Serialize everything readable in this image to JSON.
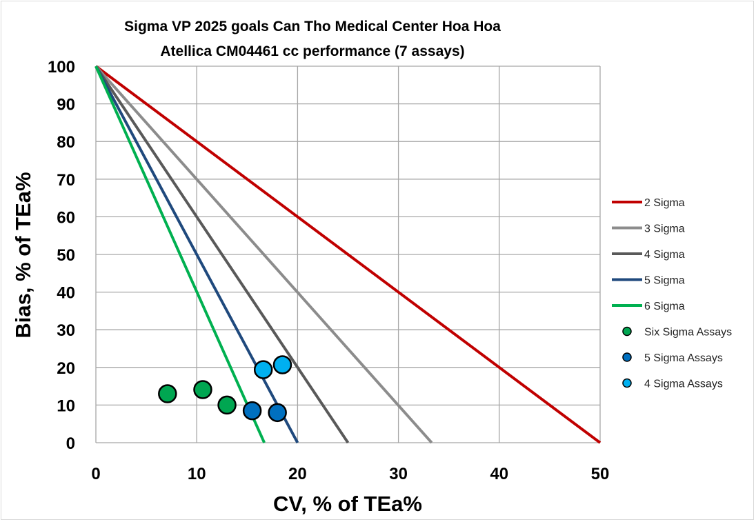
{
  "chart_data": {
    "type": "scatter",
    "title": [
      "Sigma VP 2025 goals Can Tho Medical Center Hoa Hoa",
      "Atellica CM04461 cc performance (7 assays)"
    ],
    "xlabel": "CV, % of TEa%",
    "ylabel": "Bias, % of TEa%",
    "xlim": [
      0,
      50
    ],
    "ylim": [
      0,
      100
    ],
    "xticks": [
      0,
      10,
      20,
      30,
      40,
      50
    ],
    "yticks": [
      0,
      10,
      20,
      30,
      40,
      50,
      60,
      70,
      80,
      90,
      100
    ],
    "grid": true,
    "legend_position": "right",
    "lines": [
      {
        "name": "2 Sigma",
        "color": "#c00000",
        "points": [
          [
            0,
            100
          ],
          [
            50,
            0
          ]
        ]
      },
      {
        "name": "3 Sigma",
        "color": "#8c8c8c",
        "points": [
          [
            0,
            100
          ],
          [
            33.3,
            0
          ]
        ]
      },
      {
        "name": "4 Sigma",
        "color": "#595959",
        "points": [
          [
            0,
            100
          ],
          [
            25,
            0
          ]
        ]
      },
      {
        "name": "5 Sigma",
        "color": "#1f497d",
        "points": [
          [
            0,
            100
          ],
          [
            20,
            0
          ]
        ]
      },
      {
        "name": "6 Sigma",
        "color": "#00b050",
        "points": [
          [
            0,
            100
          ],
          [
            16.7,
            0
          ]
        ]
      }
    ],
    "series": [
      {
        "name": "Six Sigma Assays",
        "color": "#00a651",
        "points": [
          [
            7.1,
            13.0
          ],
          [
            10.6,
            14.1
          ],
          [
            13.0,
            10.0
          ]
        ]
      },
      {
        "name": "5 Sigma Assays",
        "color": "#0070c0",
        "points": [
          [
            15.5,
            8.5
          ],
          [
            18.0,
            8.0
          ]
        ]
      },
      {
        "name": "4 Sigma Assays",
        "color": "#00b0f0",
        "points": [
          [
            16.6,
            19.4
          ],
          [
            18.5,
            20.7
          ]
        ]
      }
    ]
  }
}
